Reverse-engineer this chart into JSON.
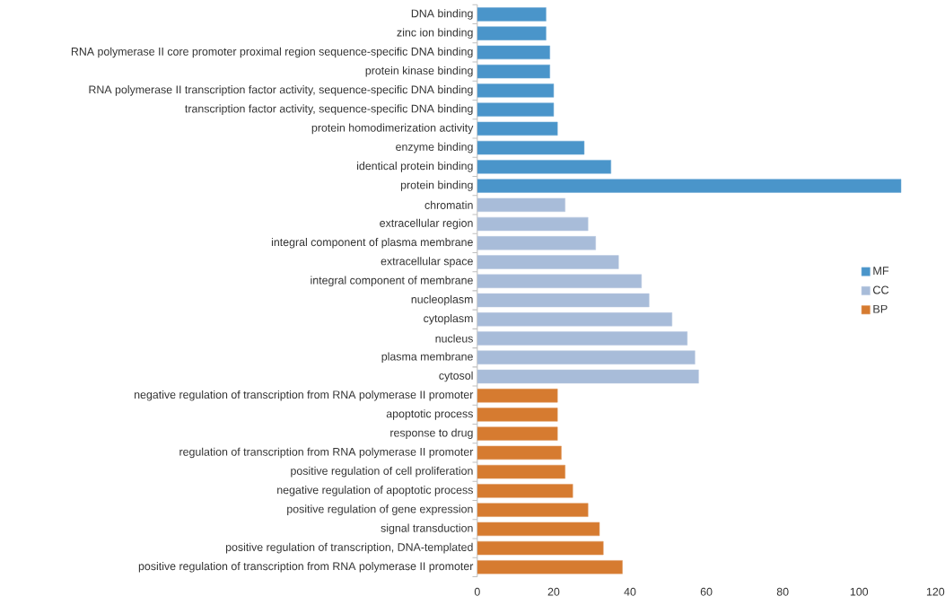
{
  "chart_data": {
    "type": "bar",
    "orientation": "horizontal",
    "categories": [
      "DNA binding",
      "zinc ion binding",
      "RNA polymerase II core promoter proximal region sequence-specific DNA binding",
      "protein kinase binding",
      "RNA polymerase II transcription factor activity, sequence-specific DNA binding",
      "transcription factor activity, sequence-specific DNA binding",
      "protein homodimerization activity",
      "enzyme binding",
      "identical protein binding",
      "protein binding",
      "chromatin",
      "extracellular region",
      "integral component of plasma membrane",
      "extracellular space",
      "integral component of membrane",
      "nucleoplasm",
      "cytoplasm",
      "nucleus",
      "plasma membrane",
      "cytosol",
      "negative regulation of transcription from RNA polymerase II promoter",
      "apoptotic process",
      "response to drug",
      "regulation of transcription from RNA polymerase II promoter",
      "positive regulation of cell proliferation",
      "negative regulation of apoptotic process",
      "positive regulation of gene expression",
      "signal transduction",
      "positive regulation of transcription, DNA-templated",
      "positive regulation of transcription from RNA polymerase II promoter"
    ],
    "series": [
      {
        "name": "MF",
        "color": "#4a95ca",
        "values": [
          18,
          18,
          19,
          19,
          20,
          20,
          21,
          28,
          35,
          111,
          null,
          null,
          null,
          null,
          null,
          null,
          null,
          null,
          null,
          null,
          null,
          null,
          null,
          null,
          null,
          null,
          null,
          null,
          null,
          null
        ]
      },
      {
        "name": "CC",
        "color": "#a8bcd9",
        "values": [
          null,
          null,
          null,
          null,
          null,
          null,
          null,
          null,
          null,
          null,
          23,
          29,
          31,
          37,
          43,
          45,
          51,
          55,
          57,
          58,
          null,
          null,
          null,
          null,
          null,
          null,
          null,
          null,
          null,
          null
        ]
      },
      {
        "name": "BP",
        "color": "#d67b30",
        "values": [
          null,
          null,
          null,
          null,
          null,
          null,
          null,
          null,
          null,
          null,
          null,
          null,
          null,
          null,
          null,
          null,
          null,
          null,
          null,
          null,
          21,
          21,
          21,
          22,
          23,
          25,
          29,
          32,
          33,
          38
        ]
      }
    ],
    "xlim": [
      0,
      120
    ],
    "xticks": [
      0,
      20,
      40,
      60,
      80,
      100,
      120
    ],
    "legend": "right"
  }
}
